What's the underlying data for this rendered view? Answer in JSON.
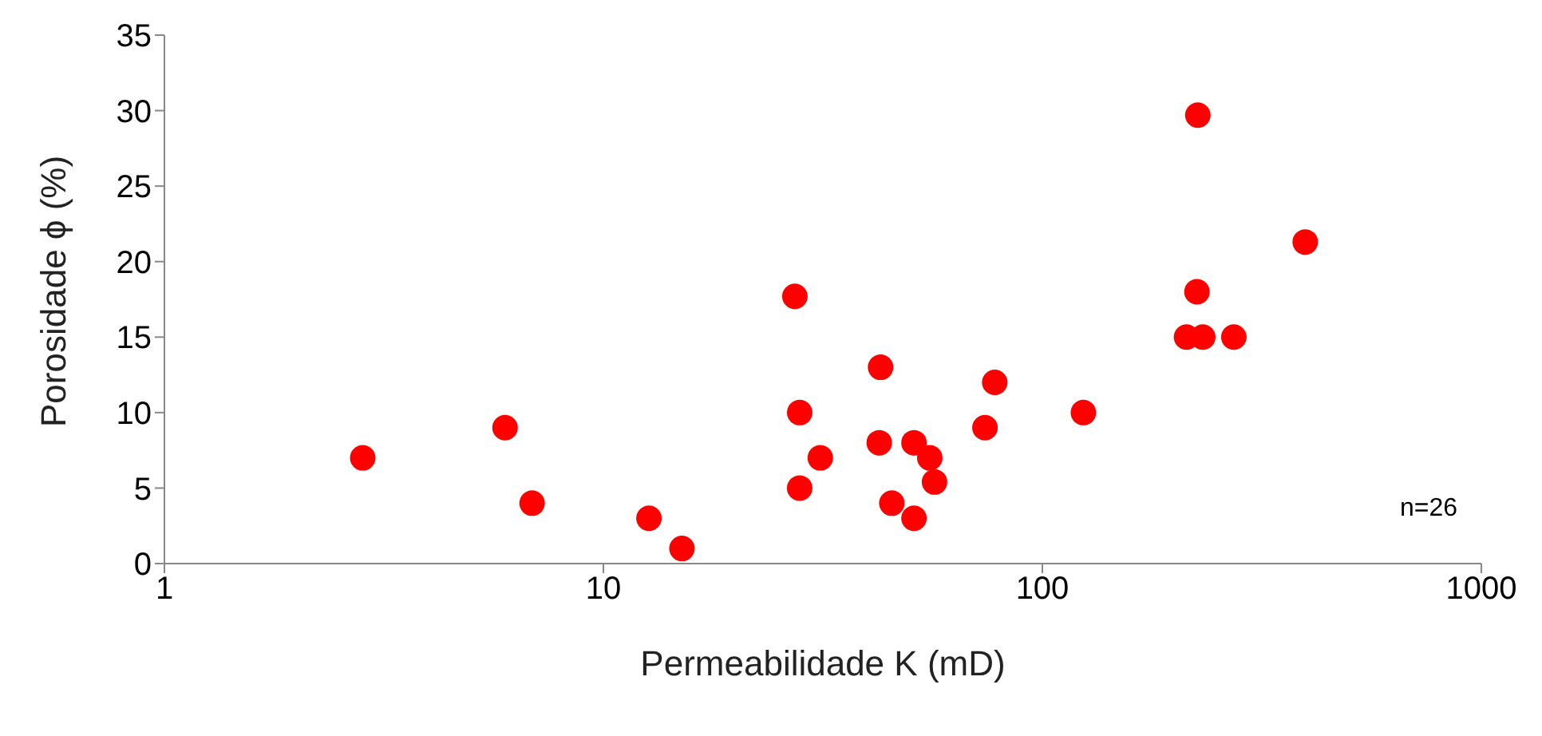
{
  "chart_data": {
    "type": "scatter",
    "xlabel": "Permeabilidade K (mD)",
    "ylabel": "Porosidade ϕ (%)",
    "log": "x",
    "xlim": [
      1,
      1000
    ],
    "xticks": [
      1,
      10,
      100,
      1000
    ],
    "ylim": [
      0,
      35
    ],
    "yticks": [
      0,
      5,
      10,
      15,
      20,
      25,
      30,
      35
    ],
    "grid": false,
    "legend": false,
    "marker": "circle",
    "annotations": [
      "n=26"
    ],
    "series": [
      {
        "color": "#ff0000",
        "x": [
          2.83,
          5.97,
          6.88,
          12.7,
          15.1,
          27.3,
          28,
          28,
          31.2,
          42.8,
          42.5,
          45.4,
          51,
          51,
          55.4,
          56.8,
          74,
          77.9,
          124,
          213,
          226,
          225,
          232,
          273,
          397
        ],
        "values": [
          7,
          9,
          4,
          3,
          1,
          17.7,
          10,
          5,
          7,
          13,
          8,
          4,
          8,
          3,
          7,
          5.4,
          9,
          12,
          10,
          15,
          29.7,
          18,
          15,
          15,
          21.3
        ]
      }
    ]
  }
}
